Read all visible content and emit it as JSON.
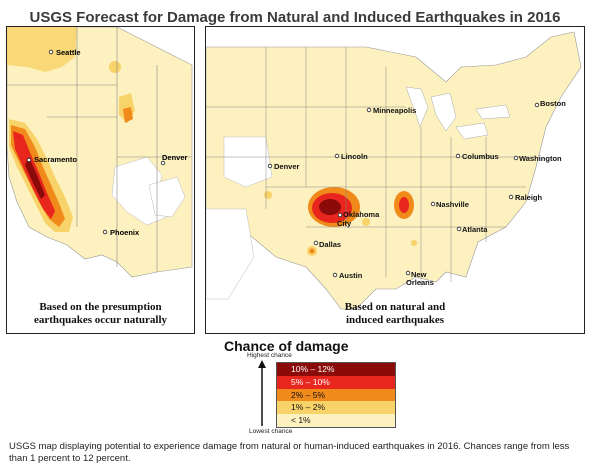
{
  "title": "USGS Forecast for Damage from Natural and Induced Earthquakes in 2016",
  "left_map": {
    "caption_line1": "Based on the presumption",
    "caption_line2": "earthquakes occur naturally",
    "cities": [
      "Seattle",
      "Sacramento",
      "Denver",
      "Phoenix"
    ]
  },
  "right_map": {
    "caption_line1": "Based on natural and",
    "caption_line2": "induced earthquakes",
    "cities": [
      "Minneapolis",
      "Boston",
      "Denver",
      "Lincoln",
      "Columbus",
      "Washington",
      "Raleigh",
      "Nashville",
      "Oklahoma",
      "City",
      "Atlanta",
      "Dallas",
      "Austin",
      "New",
      "Orleans"
    ]
  },
  "legend": {
    "title": "Chance of damage",
    "highest_label": "Highest chance",
    "lowest_label": "Lowest chance",
    "items": [
      {
        "label": "10% – 12%",
        "color": "#8b0a0a"
      },
      {
        "label": "5% – 10%",
        "color": "#e8261e"
      },
      {
        "label": "2% – 5%",
        "color": "#f08a1a"
      },
      {
        "label": "1% – 2%",
        "color": "#f8d36a"
      },
      {
        "label": "< 1%",
        "color": "#fdf1bf"
      }
    ]
  },
  "footnote": "USGS map displaying potential to experience damage from natural or human-induced earthquakes in 2016. Chances range from less than 1 percent to 12 percent."
}
